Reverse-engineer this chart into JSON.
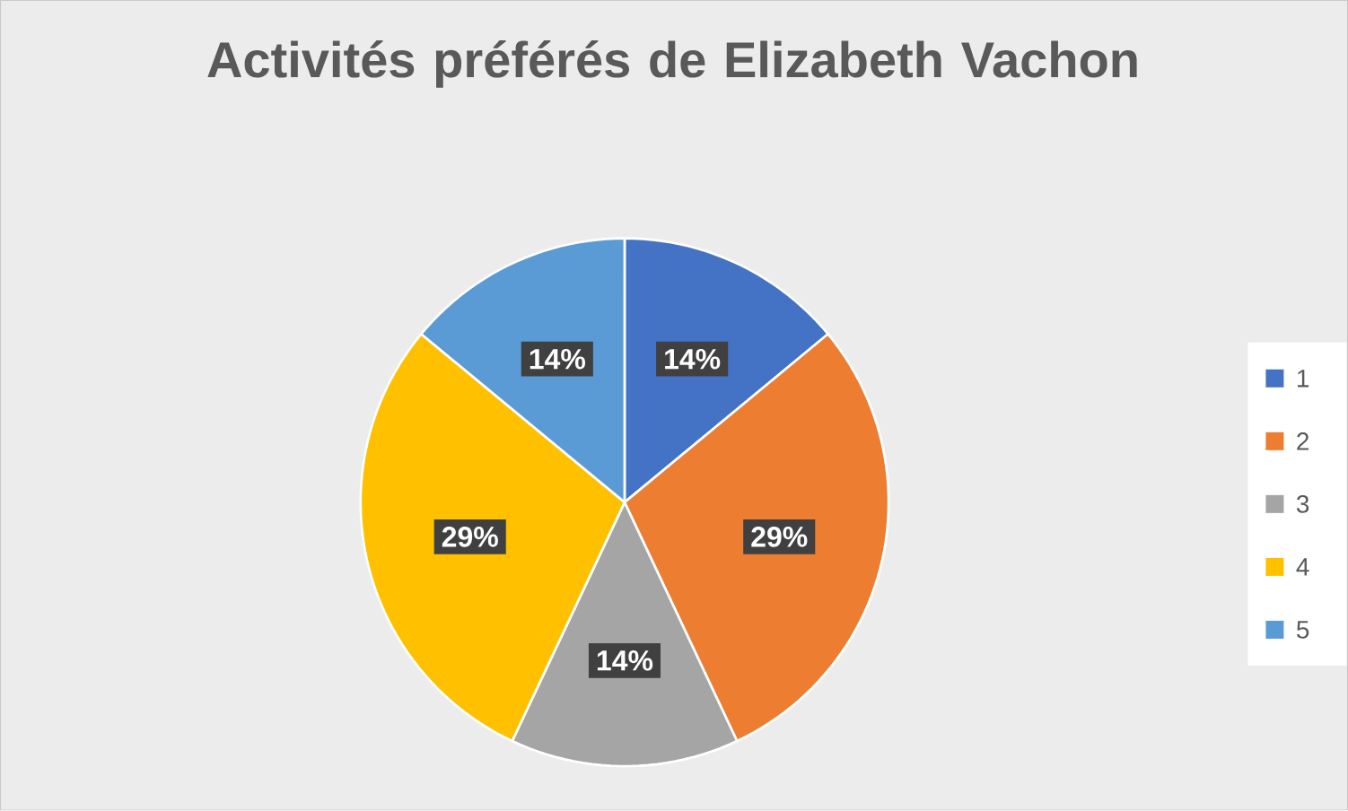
{
  "chart_data": {
    "type": "pie",
    "title": "Activités préférés de Elizabeth Vachon",
    "categories": [
      "1",
      "2",
      "3",
      "4",
      "5"
    ],
    "values": [
      14,
      29,
      14,
      29,
      14
    ],
    "value_labels": [
      "14%",
      "29%",
      "14%",
      "29%",
      "14%"
    ],
    "colors": [
      "#4472c4",
      "#ed7d31",
      "#a5a5a5",
      "#ffc000",
      "#5b9bd5"
    ],
    "legend": "right"
  }
}
